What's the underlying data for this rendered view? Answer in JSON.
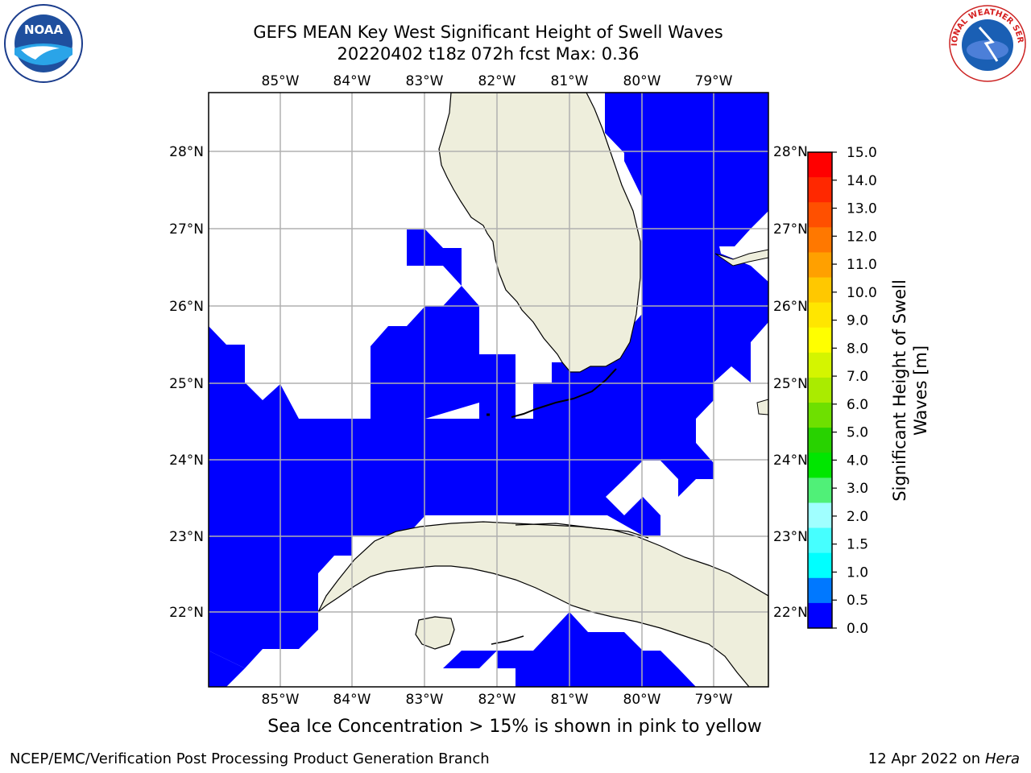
{
  "title_line1": "GEFS MEAN Key West Significant Height of Swell Waves",
  "title_line2": "20220402 t18z 072h fcst   Max: 0.36",
  "sea_ice_note": "Sea Ice Concentration > 15% is shown in pink to yellow",
  "footer": {
    "left": "NCEP/EMC/Verification Post Processing Product Generation Branch",
    "date": "12 Apr 2022 on ",
    "machine": "Hera"
  },
  "logos": {
    "noaa_text": "NOAA",
    "nws_text": "NATIONAL WEATHER SERVICE"
  },
  "map": {
    "lon_labels": [
      "85°W",
      "84°W",
      "83°W",
      "82°W",
      "81°W",
      "80°W",
      "79°W"
    ],
    "lat_labels": [
      "28°N",
      "27°N",
      "26°N",
      "25°N",
      "24°N",
      "23°N",
      "22°N"
    ],
    "extent": {
      "lon_min": -86.0,
      "lon_max": -78.25,
      "lat_min": 21.0,
      "lat_max": 28.75
    },
    "land_color": "#eeeedc",
    "field_color": "#0000ff"
  },
  "colorbar": {
    "title_line1": "Significant Height of Swell",
    "title_line2": "Waves [m]",
    "ticks": [
      "15.0",
      "14.0",
      "13.0",
      "12.0",
      "11.0",
      "10.0",
      "9.0",
      "8.0",
      "7.0",
      "6.0",
      "5.0",
      "4.0",
      "3.0",
      "2.0",
      "1.5",
      "1.0",
      "0.5",
      "0.0"
    ],
    "colors_top_to_bottom": [
      "#ff0000",
      "#ff2800",
      "#ff5000",
      "#ff7800",
      "#ffa000",
      "#ffc800",
      "#ffe600",
      "#ffff00",
      "#d4f500",
      "#aaeb00",
      "#6ee000",
      "#28d200",
      "#00e600",
      "#50f078",
      "#a0ffff",
      "#46ffff",
      "#00ffff",
      "#0078ff",
      "#0000ff"
    ]
  }
}
